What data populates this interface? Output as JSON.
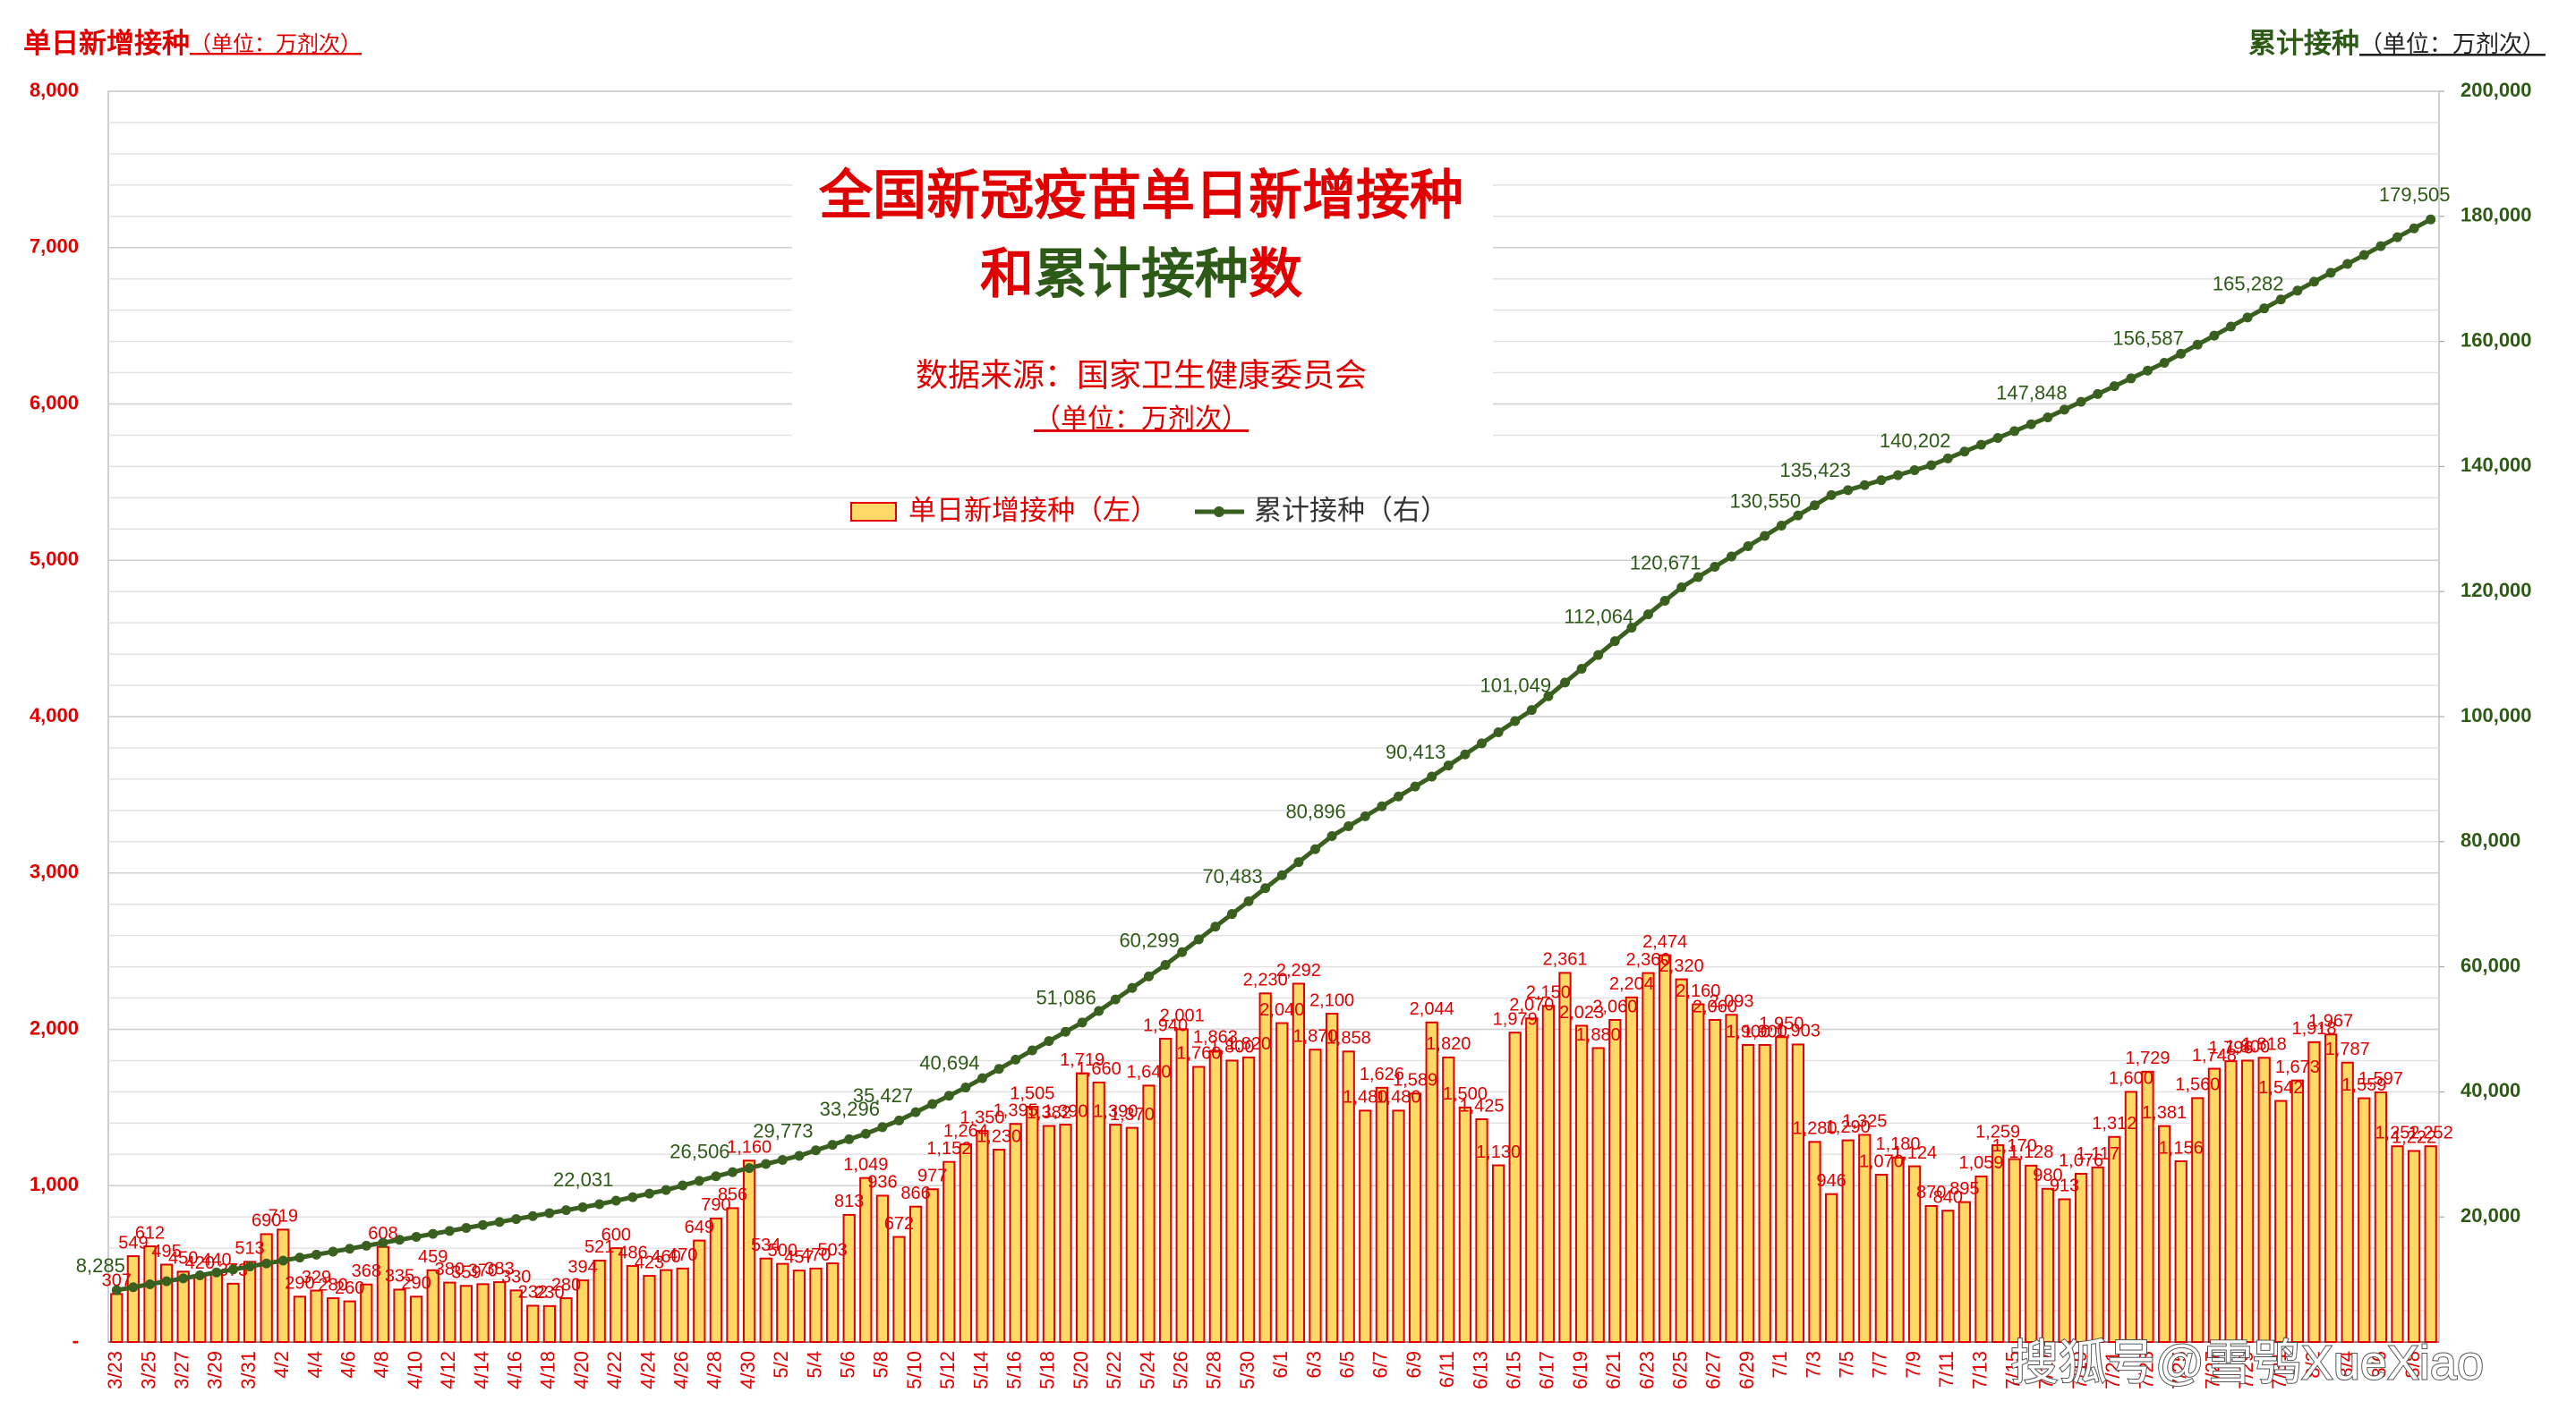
{
  "chart_data": {
    "type": "bar",
    "title": "全国新冠疫苗单日新增接种",
    "title_line2": [
      "和",
      "累计接种",
      "数"
    ],
    "subtitle": "数据来源：国家卫生健康委员会",
    "unit_note": "（单位：万剂次）",
    "ylabel": "单日新增接种",
    "ylabel_unit": "（单位：万剂次）",
    "y2label": "累计接种",
    "y2label_unit": "（单位：万剂次）",
    "watermark": "搜狐号@雪鸮XueXiao",
    "categories": [
      "3/23",
      null,
      "3/25",
      null,
      "3/27",
      null,
      "3/29",
      null,
      "3/31",
      null,
      "4/2",
      null,
      "4/4",
      null,
      "4/6",
      null,
      "4/8",
      null,
      "4/10",
      null,
      "4/12",
      null,
      "4/14",
      null,
      "4/16",
      null,
      "4/18",
      null,
      "4/20",
      null,
      "4/22",
      null,
      "4/24",
      null,
      "4/26",
      null,
      "4/28",
      null,
      "4/30",
      null,
      "5/2",
      null,
      "5/4",
      null,
      "5/6",
      null,
      "5/8",
      null,
      "5/10",
      null,
      "5/12",
      null,
      "5/14",
      null,
      "5/16",
      null,
      "5/18",
      null,
      "5/20",
      null,
      "5/22",
      null,
      "5/24",
      null,
      "5/26",
      null,
      "5/28",
      null,
      "5/30",
      null,
      "6/1",
      null,
      "6/3",
      null,
      "6/5",
      null,
      "6/7",
      null,
      "6/9",
      null,
      "6/11",
      null,
      "6/13",
      null,
      "6/15",
      null,
      "6/17",
      null,
      "6/19",
      null,
      "6/21",
      null,
      "6/23",
      null,
      "6/25",
      null,
      "6/27",
      null,
      "6/29",
      null,
      "7/1",
      null,
      "7/3",
      null,
      "7/5",
      null,
      "7/7",
      null,
      "7/9",
      null,
      "7/11",
      null,
      "7/13",
      null,
      "7/15",
      null,
      "7/17",
      null,
      "7/19",
      null,
      "7/21",
      null,
      "7/23",
      null,
      "7/25",
      null,
      "7/27",
      null,
      "7/29",
      null,
      "7/31",
      null,
      "8/2",
      null,
      "8/4",
      null,
      "8/6",
      null,
      "8/8",
      null
    ],
    "series": [
      {
        "name": "单日新增接种（左）",
        "color": "#ffd966",
        "edge_color": "#e00000",
        "values": [
          307,
          549,
          612,
          495,
          450,
          420,
          440,
          373,
          513,
          690,
          719,
          290,
          329,
          280,
          260,
          368,
          608,
          335,
          290,
          459,
          380,
          359,
          370,
          383,
          330,
          232,
          230,
          280,
          394,
          521,
          600,
          486,
          423,
          460,
          470,
          649,
          790,
          856,
          1160,
          534,
          500,
          457,
          470,
          503,
          813,
          1049,
          936,
          672,
          866,
          977,
          1152,
          1264,
          1350,
          1230,
          1395,
          1505,
          1382,
          1390,
          1719,
          1660,
          1390,
          1370,
          1640,
          1940,
          2001,
          1760,
          1863,
          1800,
          1820,
          2230,
          2040,
          2292,
          1870,
          2100,
          1858,
          1480,
          1626,
          1480,
          1589,
          2044,
          1820,
          1500,
          1425,
          1130,
          1979,
          2070,
          2150,
          2361,
          2023,
          1880,
          2060,
          2204,
          2360,
          2474,
          2320,
          2160,
          2060,
          2093,
          1900,
          1900,
          1950,
          1903,
          1280,
          946,
          1290,
          1325,
          1070,
          1180,
          1124,
          870,
          840,
          895,
          1059,
          1259,
          1170,
          1128,
          980,
          913,
          1076,
          1117,
          1312,
          1600,
          1729,
          1381,
          1156,
          1560,
          1748,
          1796,
          1800,
          1818,
          1542,
          1673,
          1918,
          1967,
          1787,
          1559,
          1597,
          1252,
          1222,
          1252
        ],
        "value_labels": [
          "307",
          "549",
          "612",
          "495",
          "450",
          "420",
          "440",
          "373",
          "513",
          "690",
          "719",
          "290",
          "329",
          "280",
          "260",
          "368",
          "608",
          "335",
          "290",
          "459",
          "380",
          "359",
          "370",
          "383",
          "330",
          "232",
          "230",
          "280",
          "394",
          "521",
          "600",
          "486",
          "423",
          "460",
          "470",
          "649",
          "790",
          "856",
          "1,160",
          "534",
          "500",
          "457",
          "470",
          "503",
          "813",
          "1,049",
          "936",
          "672",
          "866",
          "977",
          "1,152",
          "1,264",
          "1,350",
          "1,230",
          "1,395",
          "1,505",
          "1,382",
          "1,390",
          "1,719",
          "1,660",
          "1,390",
          "1,370",
          "1,640",
          "1,940",
          "2,001",
          "1,760",
          "1,863",
          "1,800",
          "1,820",
          "2,230",
          "2,040",
          "2,292",
          "1,870",
          "2,100",
          "1,858",
          "1,480",
          "1,626",
          "1,480",
          "1,589",
          "2,044",
          "1,820",
          "1,500",
          "1,425",
          "1,130",
          "1,979",
          "2,070",
          "2,150",
          "2,361",
          "2,023",
          "1,880",
          "2,060",
          "2,204",
          "2,360",
          "2,474",
          "2,320",
          "2,160",
          "2,060",
          "2,093",
          "1,900",
          "1,900",
          "1,950",
          "1,903",
          "1,280",
          "946",
          "1,290",
          "1,325",
          "1,070",
          "1,180",
          "1,124",
          "870",
          "840",
          "895",
          "1,059",
          "1,259",
          "1,170",
          "1,128",
          "980",
          "913",
          "1,076",
          "1,117",
          "1,312",
          "1,600",
          "1,729",
          "1,381",
          "1,156",
          "1,560",
          "1,748",
          "1,796",
          "1,800",
          "1,818",
          "1,542",
          "1,673",
          "1,918",
          "1,967",
          "1,787",
          "1,559",
          "1,597",
          "1,252",
          "1,222",
          "1,252"
        ]
      },
      {
        "name": "累计接种（右）",
        "type": "line",
        "axis": "y2",
        "color": "#3a6020",
        "values": [
          8285,
          8759,
          9233,
          9707,
          10181,
          10655,
          11129,
          11603,
          12077,
          12551,
          13025,
          13499,
          13973,
          14447,
          14921,
          15395,
          15869,
          16343,
          16817,
          17291,
          17765,
          18239,
          18713,
          19187,
          19661,
          20135,
          20609,
          21083,
          21557,
          22031,
          22598,
          23165,
          23732,
          24300,
          25035,
          25770,
          26506,
          27159,
          27812,
          28465,
          29118,
          29773,
          30654,
          31535,
          32416,
          33296,
          34362,
          35427,
          36744,
          38061,
          39378,
          40694,
          42179,
          43664,
          45149,
          46634,
          48119,
          49604,
          51086,
          52929,
          54772,
          56615,
          58458,
          60299,
          62336,
          64373,
          66410,
          68447,
          70483,
          72566,
          74649,
          76732,
          78815,
          80896,
          82482,
          84068,
          85654,
          87240,
          88826,
          90413,
          92186,
          93959,
          95732,
          97505,
          99278,
          101049,
          103252,
          105455,
          107658,
          109861,
          112064,
          114216,
          116368,
          118520,
          120671,
          122318,
          123965,
          125612,
          127259,
          128906,
          130550,
          132174,
          133798,
          135423,
          136220,
          137017,
          137814,
          138611,
          139408,
          140202,
          141294,
          142386,
          143478,
          144570,
          145662,
          146754,
          147848,
          149096,
          150344,
          151592,
          152840,
          154088,
          155336,
          156587,
          158036,
          159485,
          160934,
          162383,
          163832,
          165282,
          166704,
          168126,
          169548,
          170970,
          172392,
          173814,
          175236,
          176658,
          178080,
          179505
        ],
        "value_labels": [
          "8,285",
          null,
          null,
          null,
          null,
          null,
          null,
          null,
          null,
          null,
          null,
          null,
          null,
          null,
          null,
          null,
          null,
          null,
          null,
          null,
          null,
          null,
          null,
          null,
          null,
          null,
          null,
          null,
          null,
          "22,031",
          null,
          null,
          null,
          null,
          null,
          null,
          "26,506",
          null,
          null,
          null,
          null,
          "29,773",
          null,
          null,
          null,
          "33,296",
          null,
          "35,427",
          null,
          null,
          null,
          "40,694",
          null,
          null,
          null,
          null,
          null,
          null,
          "51,086",
          null,
          null,
          null,
          null,
          "60,299",
          null,
          null,
          null,
          null,
          "70,483",
          null,
          null,
          null,
          null,
          "80,896",
          null,
          null,
          null,
          null,
          null,
          "90,413",
          null,
          null,
          null,
          null,
          null,
          "101,049",
          null,
          null,
          null,
          null,
          "112,064",
          null,
          null,
          null,
          "120,671",
          null,
          null,
          null,
          null,
          null,
          "130,550",
          null,
          null,
          "135,423",
          null,
          null,
          null,
          null,
          null,
          "140,202",
          null,
          null,
          null,
          null,
          null,
          null,
          "147,848",
          null,
          null,
          null,
          null,
          null,
          null,
          "156,587",
          null,
          null,
          null,
          null,
          null,
          "165,282",
          null,
          null,
          null,
          null,
          null,
          null,
          null,
          null,
          null,
          "179,505"
        ]
      }
    ],
    "ylim": [
      0,
      8000
    ],
    "yticks": [
      {
        "value": 0,
        "label": "-"
      },
      {
        "value": 1000,
        "label": "1,000"
      },
      {
        "value": 2000,
        "label": "2,000"
      },
      {
        "value": 3000,
        "label": "3,000"
      },
      {
        "value": 4000,
        "label": "4,000"
      },
      {
        "value": 5000,
        "label": "5,000"
      },
      {
        "value": 6000,
        "label": "6,000"
      },
      {
        "value": 7000,
        "label": "7,000"
      },
      {
        "value": 8000,
        "label": "8,000"
      }
    ],
    "y2lim": [
      0,
      200000
    ],
    "y2ticks": [
      {
        "value": 20000,
        "label": "20,000"
      },
      {
        "value": 40000,
        "label": "40,000"
      },
      {
        "value": 60000,
        "label": "60,000"
      },
      {
        "value": 80000,
        "label": "80,000"
      },
      {
        "value": 100000,
        "label": "100,000"
      },
      {
        "value": 120000,
        "label": "120,000"
      },
      {
        "value": 140000,
        "label": "140,000"
      },
      {
        "value": 160000,
        "label": "160,000"
      },
      {
        "value": 180000,
        "label": "180,000"
      },
      {
        "value": 200000,
        "label": "200,000"
      }
    ],
    "grid": true,
    "grid_step": 200
  }
}
